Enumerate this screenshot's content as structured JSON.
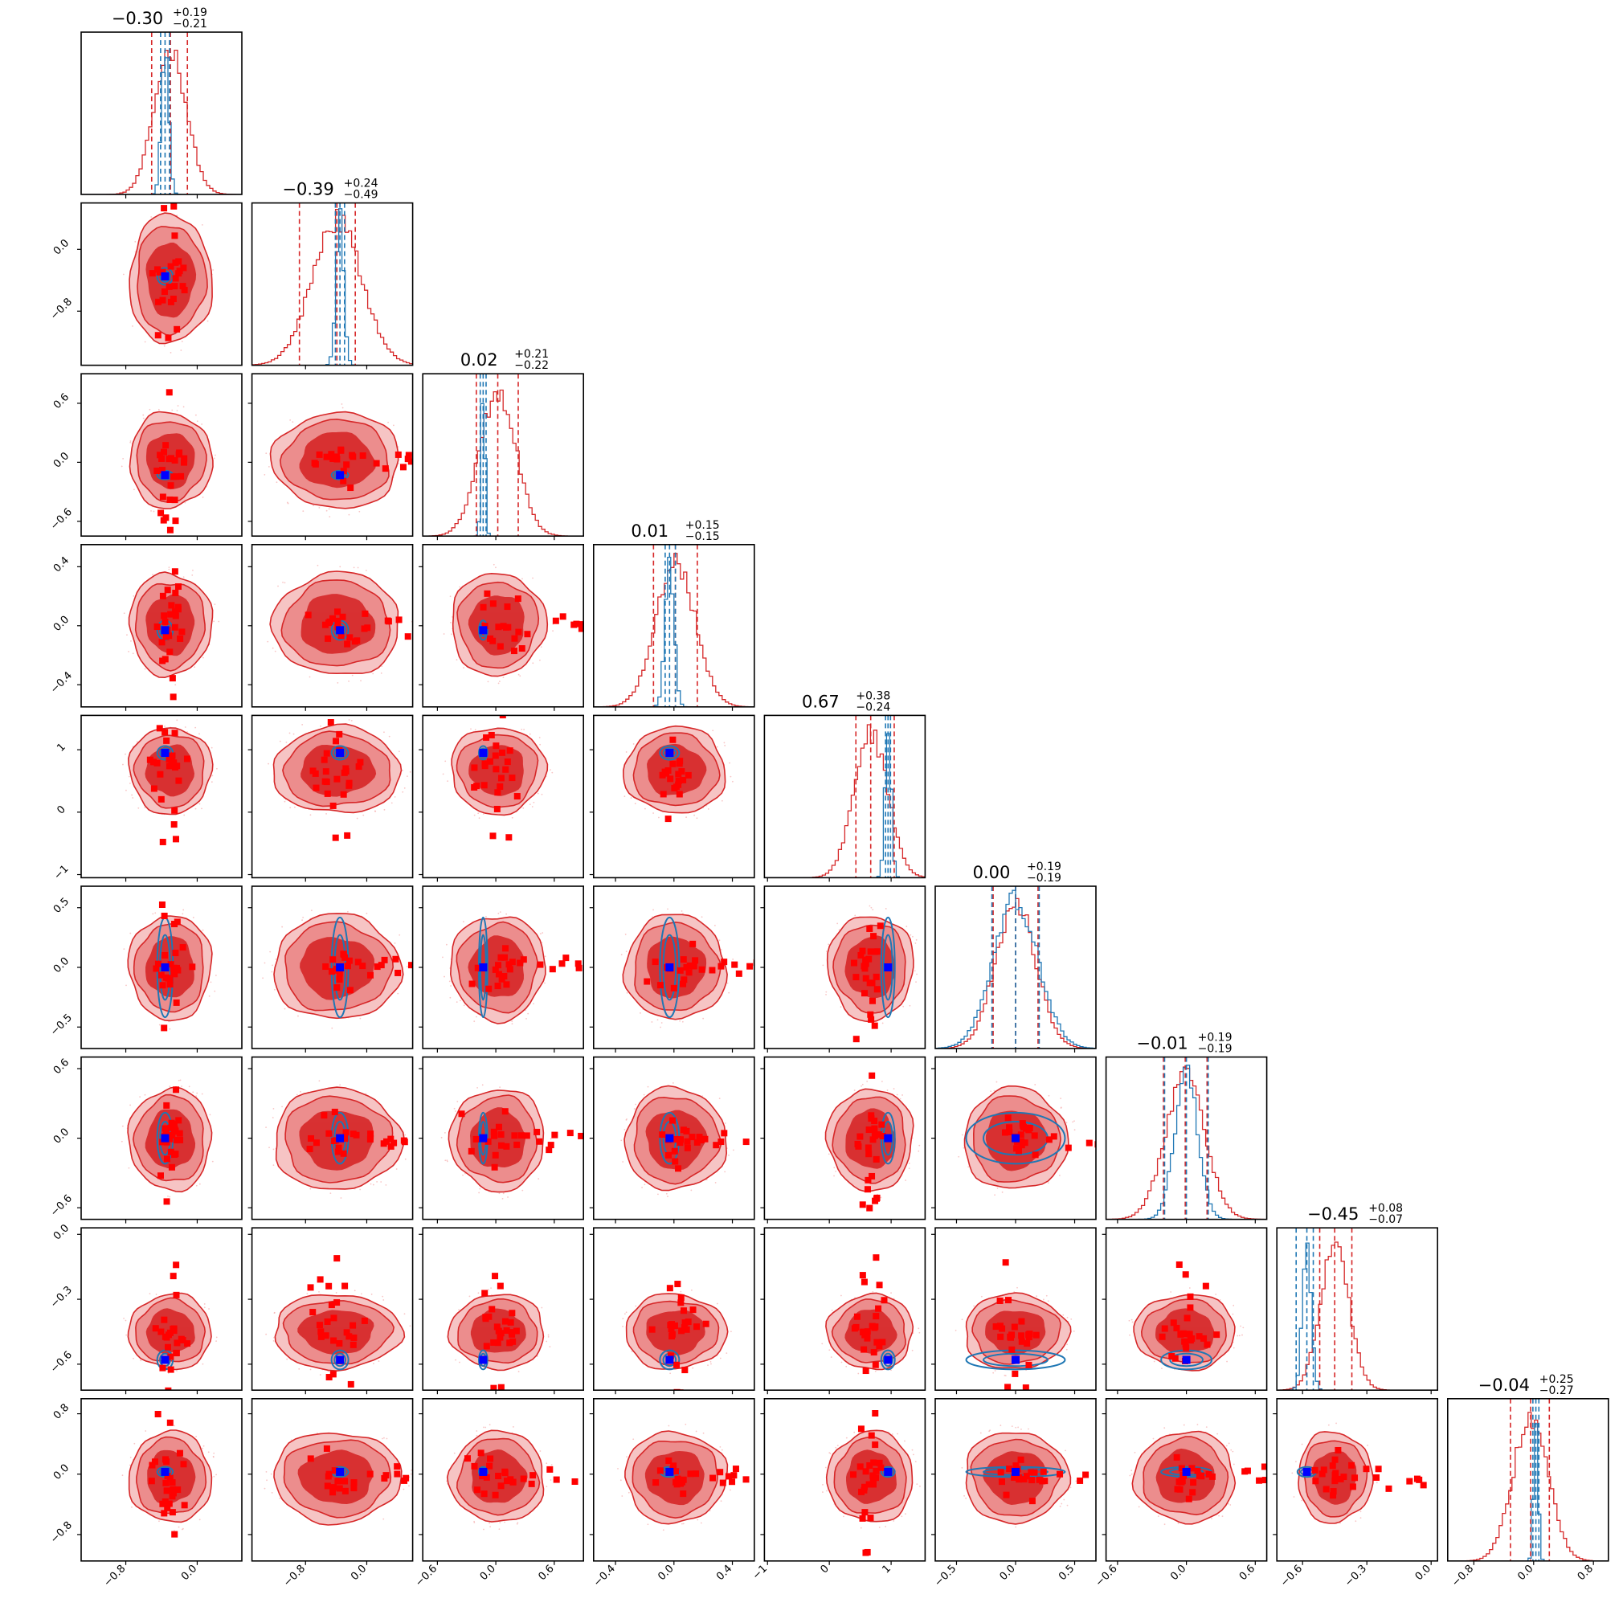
{
  "chart_data": {
    "type": "corner",
    "n_params": 9,
    "panel_titles": [
      {
        "median": "−0.30",
        "plus": "+0.19",
        "minus": "−0.21"
      },
      {
        "median": "−0.39",
        "plus": "+0.24",
        "minus": "−0.49"
      },
      {
        "median": "0.02",
        "plus": "+0.21",
        "minus": "−0.22"
      },
      {
        "median": "0.01",
        "plus": "+0.15",
        "minus": "−0.15"
      },
      {
        "median": "0.67",
        "plus": "+0.38",
        "minus": "−0.24"
      },
      {
        "median": "0.00",
        "plus": "+0.19",
        "minus": "−0.19"
      },
      {
        "median": "−0.01",
        "plus": "+0.19",
        "minus": "−0.19"
      },
      {
        "median": "−0.45",
        "plus": "+0.08",
        "minus": "−0.07"
      },
      {
        "median": "−0.04",
        "plus": "+0.25",
        "minus": "−0.27"
      }
    ],
    "axes": [
      {
        "range": [
          -1.3,
          0.5
        ],
        "ticks": [
          "−0.8",
          "0.0"
        ],
        "tick_values": [
          -0.8,
          0.0
        ]
      },
      {
        "range": [
          -1.5,
          0.6
        ],
        "ticks": [
          "−0.8",
          "0.0"
        ],
        "tick_values": [
          -0.8,
          0.0
        ]
      },
      {
        "range": [
          -0.75,
          0.9
        ],
        "ticks": [
          "−0.6",
          "0.0",
          "0.6"
        ],
        "tick_values": [
          -0.6,
          0.0,
          0.6
        ]
      },
      {
        "range": [
          -0.55,
          0.55
        ],
        "ticks": [
          "−0.4",
          "0.0",
          "0.4"
        ],
        "tick_values": [
          -0.4,
          0.0,
          0.4
        ]
      },
      {
        "range": [
          -1.05,
          1.55
        ],
        "ticks": [
          "−1",
          "0",
          "1"
        ],
        "tick_values": [
          -1,
          0,
          1
        ]
      },
      {
        "range": [
          -0.68,
          0.68
        ],
        "ticks": [
          "−0.5",
          "0.0",
          "0.5"
        ],
        "tick_values": [
          -0.5,
          0.0,
          0.5
        ]
      },
      {
        "range": [
          -0.7,
          0.7
        ],
        "ticks": [
          "−0.6",
          "0.0",
          "0.6"
        ],
        "tick_values": [
          -0.6,
          0.0,
          0.6
        ]
      },
      {
        "range": [
          -0.72,
          0.03
        ],
        "ticks": [
          "−0.6",
          "−0.3",
          "0.0"
        ],
        "tick_values": [
          -0.6,
          -0.3,
          0.0
        ]
      },
      {
        "range": [
          -1.15,
          1.0
        ],
        "ticks": [
          "−0.8",
          "0.0",
          "0.8"
        ],
        "tick_values": [
          -0.8,
          0.0,
          0.8
        ]
      }
    ],
    "red_centers": [
      -0.3,
      -0.39,
      0.02,
      0.01,
      0.67,
      0.0,
      -0.01,
      -0.45,
      -0.04
    ],
    "red_widths": [
      0.2,
      0.36,
      0.21,
      0.15,
      0.3,
      0.19,
      0.19,
      0.075,
      0.26
    ],
    "red_quantiles": [
      [
        -0.51,
        -0.3,
        -0.11
      ],
      [
        -0.88,
        -0.39,
        -0.15
      ],
      [
        -0.2,
        0.02,
        0.23
      ],
      [
        -0.14,
        0.01,
        0.16
      ],
      [
        0.43,
        0.67,
        1.05
      ],
      [
        -0.19,
        0.0,
        0.19
      ],
      [
        -0.2,
        -0.01,
        0.18
      ],
      [
        -0.52,
        -0.45,
        -0.37
      ],
      [
        -0.31,
        -0.04,
        0.21
      ]
    ],
    "blue_centers": [
      -0.36,
      -0.35,
      -0.13,
      -0.03,
      0.95,
      0.0,
      0.0,
      -0.58,
      0.03
    ],
    "blue_widths": [
      0.04,
      0.05,
      0.02,
      0.03,
      0.05,
      0.19,
      0.1,
      0.02,
      0.03
    ],
    "blue_quantiles": [
      [
        -0.41,
        -0.36,
        -0.31
      ],
      [
        -0.41,
        -0.35,
        -0.29
      ],
      [
        -0.16,
        -0.13,
        -0.1
      ],
      [
        -0.06,
        -0.03,
        0.01
      ],
      [
        0.91,
        0.95,
        0.99
      ],
      [
        -0.2,
        0.0,
        0.2
      ],
      [
        -0.19,
        0.0,
        0.19
      ],
      [
        -0.63,
        -0.58,
        -0.55
      ],
      [
        -0.01,
        0.03,
        0.07
      ]
    ],
    "colors": {
      "red": "#d62728",
      "blue": "#1f77b4",
      "marker_blue": "#0000ff",
      "scatter_red": "#ff0000"
    },
    "grid": false,
    "legend": "none"
  }
}
